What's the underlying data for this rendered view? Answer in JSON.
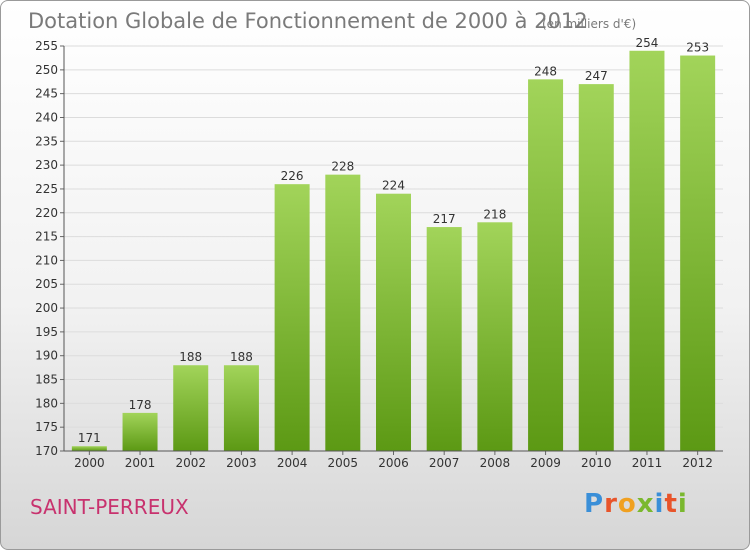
{
  "header": {
    "title": "Dotation Globale de Fonctionnement de 2000 à 2012",
    "unit": "(en milliers d'€)"
  },
  "footer": {
    "city": "SAINT-PERREUX",
    "logo": "Proxiti"
  },
  "colors": {
    "bar_light": "#a2d45a",
    "bar_dark": "#5c9914",
    "city": "#c8326e",
    "logo": [
      "#3a8fd8",
      "#e8542a",
      "#f0a020",
      "#7ab82e",
      "#3a8fd8",
      "#e8542a",
      "#7ab82e"
    ]
  },
  "chart_data": {
    "type": "bar",
    "title": "Dotation Globale de Fonctionnement de 2000 à 2012",
    "subtitle": "(en milliers d'€)",
    "categories": [
      "2000",
      "2001",
      "2002",
      "2003",
      "2004",
      "2005",
      "2006",
      "2007",
      "2008",
      "2009",
      "2010",
      "2011",
      "2012"
    ],
    "values": [
      171,
      178,
      188,
      188,
      226,
      228,
      224,
      217,
      218,
      248,
      247,
      254,
      253
    ],
    "ylim": [
      170,
      255
    ],
    "yticks": [
      170,
      175,
      180,
      185,
      190,
      195,
      200,
      205,
      210,
      215,
      220,
      225,
      230,
      235,
      240,
      245,
      250,
      255
    ],
    "grid": true
  }
}
